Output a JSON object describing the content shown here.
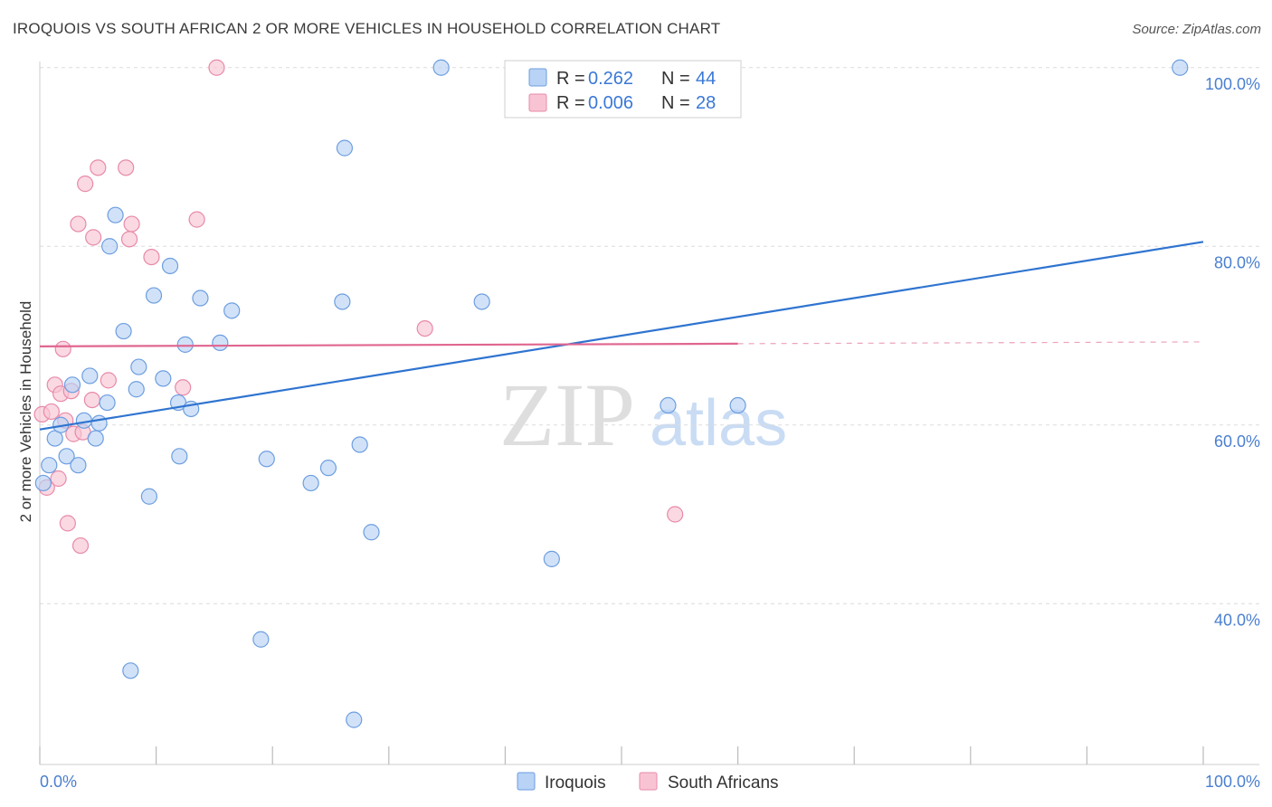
{
  "title": "IROQUOIS VS SOUTH AFRICAN 2 OR MORE VEHICLES IN HOUSEHOLD CORRELATION CHART",
  "source": "Source: ZipAtlas.com",
  "colors": {
    "blue_fill": "#b8d3f5",
    "blue_stroke": "#6d9ee0",
    "blue_line": "#2f74d0",
    "pink_fill": "#f8c4d4",
    "pink_stroke": "#e88aa8",
    "pink_line": "#e06690",
    "grid": "#dcdcdc",
    "axis_text": "#4a7fd0"
  },
  "legend": {
    "r_label": "R =",
    "n_label": "N =",
    "series": [
      {
        "r": "0.262",
        "n": "44"
      },
      {
        "r": "0.006",
        "n": "28"
      }
    ]
  },
  "watermark": {
    "zip": "ZIP",
    "atlas": "atlas"
  },
  "chart_data": {
    "type": "scatter",
    "title": "IROQUOIS VS SOUTH AFRICAN 2 OR MORE VEHICLES IN HOUSEHOLD CORRELATION CHART",
    "xlabel": "",
    "ylabel": "2 or more Vehicles in Household",
    "xlim": [
      0,
      100
    ],
    "ylim": [
      22,
      102
    ],
    "x_tick_labels": [
      "0.0%",
      "100.0%"
    ],
    "y_ticks": [
      40,
      60,
      80,
      100
    ],
    "y_tick_labels": [
      "40.0%",
      "60.0%",
      "80.0%",
      "100.0%"
    ],
    "series": [
      {
        "name": "Iroquois",
        "color": "#b8d3f5",
        "points": [
          [
            0.3,
            53.5
          ],
          [
            0.8,
            55.5
          ],
          [
            1.3,
            58.5
          ],
          [
            1.8,
            60.0
          ],
          [
            2.3,
            56.5
          ],
          [
            2.8,
            64.5
          ],
          [
            3.3,
            55.5
          ],
          [
            3.8,
            60.5
          ],
          [
            4.3,
            65.5
          ],
          [
            4.8,
            58.5
          ],
          [
            5.1,
            60.2
          ],
          [
            5.8,
            62.5
          ],
          [
            6.0,
            80.0
          ],
          [
            6.5,
            83.5
          ],
          [
            7.2,
            70.5
          ],
          [
            7.8,
            32.5
          ],
          [
            8.3,
            64.0
          ],
          [
            8.5,
            66.5
          ],
          [
            9.4,
            52.0
          ],
          [
            9.8,
            74.5
          ],
          [
            10.6,
            65.2
          ],
          [
            11.2,
            77.8
          ],
          [
            11.9,
            62.5
          ],
          [
            12.0,
            56.5
          ],
          [
            12.5,
            69.0
          ],
          [
            13.0,
            61.8
          ],
          [
            13.8,
            74.2
          ],
          [
            15.5,
            69.2
          ],
          [
            16.5,
            72.8
          ],
          [
            19.0,
            36.0
          ],
          [
            19.5,
            56.2
          ],
          [
            23.3,
            53.5
          ],
          [
            24.8,
            55.2
          ],
          [
            26.0,
            73.8
          ],
          [
            26.2,
            91.0
          ],
          [
            27.0,
            27.0
          ],
          [
            27.5,
            57.8
          ],
          [
            28.5,
            48.0
          ],
          [
            34.5,
            100.0
          ],
          [
            38.0,
            73.8
          ],
          [
            44.0,
            45.0
          ],
          [
            54.0,
            62.2
          ],
          [
            60.0,
            62.2
          ],
          [
            98.0,
            100.0
          ]
        ],
        "trend": {
          "x": [
            0,
            100
          ],
          "y": [
            59.5,
            80.5
          ]
        }
      },
      {
        "name": "South Africans",
        "color": "#f8c4d4",
        "points": [
          [
            0.2,
            61.2
          ],
          [
            0.6,
            53.0
          ],
          [
            1.0,
            61.5
          ],
          [
            1.3,
            64.5
          ],
          [
            1.6,
            54.0
          ],
          [
            1.8,
            63.5
          ],
          [
            2.0,
            68.5
          ],
          [
            2.2,
            60.5
          ],
          [
            2.4,
            49.0
          ],
          [
            2.7,
            63.8
          ],
          [
            2.9,
            59.0
          ],
          [
            3.3,
            82.5
          ],
          [
            3.5,
            46.5
          ],
          [
            3.7,
            59.2
          ],
          [
            3.9,
            87.0
          ],
          [
            4.5,
            62.8
          ],
          [
            4.6,
            81.0
          ],
          [
            5.0,
            88.8
          ],
          [
            5.9,
            65.0
          ],
          [
            7.4,
            88.8
          ],
          [
            7.7,
            80.8
          ],
          [
            7.9,
            82.5
          ],
          [
            9.6,
            78.8
          ],
          [
            12.3,
            64.2
          ],
          [
            13.5,
            83.0
          ],
          [
            15.2,
            100.0
          ],
          [
            33.1,
            70.8
          ],
          [
            54.6,
            50.0
          ]
        ],
        "trend": {
          "x": [
            0,
            60
          ],
          "y": [
            68.8,
            69.1
          ]
        },
        "trend_extension": {
          "x": [
            60,
            100
          ],
          "y": [
            69.1,
            69.3
          ]
        }
      }
    ]
  }
}
